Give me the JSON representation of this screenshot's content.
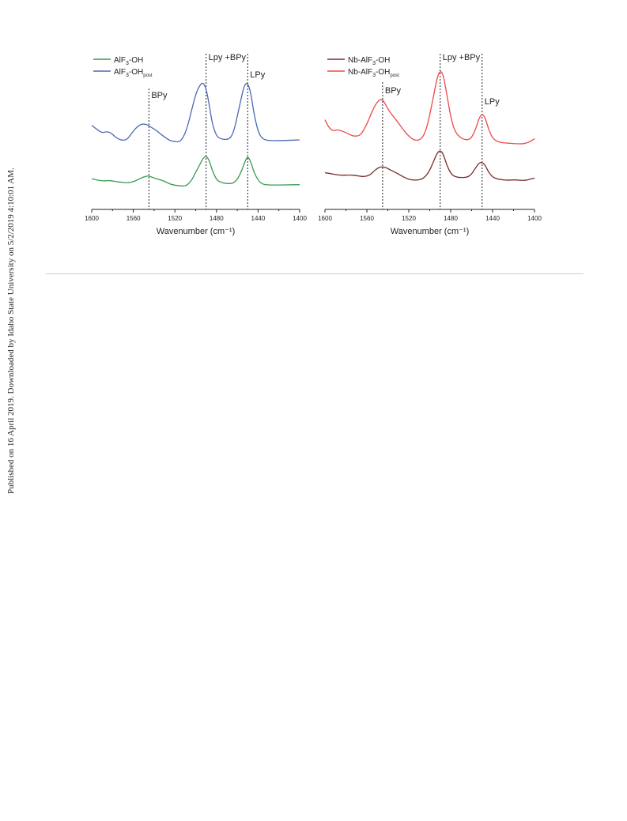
{
  "side_note": "Published on 16 April 2019. Downloaded by Idaho State University on 5/2/2019 4:10:01 AM.",
  "colors": {
    "AlF3-OH": "#3a9a4f",
    "AlF3-OHpost": "#4d68b5",
    "Nb-AlF3-OH": "#7a2a2a",
    "Nb-AlF3-OHpost": "#f0474a"
  },
  "chart_data": [
    {
      "type": "line",
      "xlabel": "Wavenumber (cm⁻¹)",
      "xlim": [
        1600,
        1400
      ],
      "xticks": [
        1600,
        1560,
        1520,
        1480,
        1440,
        1400
      ],
      "y_ticks_shown": false,
      "legend": {
        "position": "top-left",
        "entries": [
          "AlF3-OH",
          "AlF3-OHpost"
        ]
      },
      "annotations": [
        {
          "text": "BPy",
          "x": 1545
        },
        {
          "text": "Lpy +BPy",
          "x": 1490
        },
        {
          "text": "LPy",
          "x": 1450
        }
      ],
      "series": [
        {
          "name": "AlF3-OH",
          "x": [
            1600,
            1594,
            1588,
            1584,
            1580,
            1576,
            1572,
            1566,
            1560,
            1556,
            1552,
            1548,
            1545,
            1542,
            1538,
            1532,
            1528,
            1524,
            1520,
            1516,
            1512,
            1508,
            1504,
            1500,
            1496,
            1493,
            1490,
            1487,
            1484,
            1480,
            1476,
            1472,
            1468,
            1464,
            1460,
            1456,
            1453,
            1450,
            1447,
            1444,
            1440,
            1436,
            1430,
            1420,
            1410,
            1400
          ],
          "y": [
            0.52,
            0.42,
            0.36,
            0.4,
            0.37,
            0.31,
            0.29,
            0.24,
            0.31,
            0.44,
            0.58,
            0.68,
            0.7,
            0.62,
            0.52,
            0.4,
            0.28,
            0.14,
            0.09,
            0.05,
            0.02,
            0.1,
            0.4,
            0.95,
            1.45,
            1.88,
            2.05,
            1.75,
            1.05,
            0.45,
            0.28,
            0.22,
            0.18,
            0.22,
            0.45,
            1.0,
            1.6,
            2.05,
            1.65,
            0.95,
            0.42,
            0.15,
            0.1,
            0.1,
            0.11,
            0.12
          ]
        },
        {
          "name": "AlF3-OHpost",
          "x": [
            1600,
            1594,
            1590,
            1586,
            1582,
            1579,
            1575,
            1570,
            1566,
            1562,
            1558,
            1554,
            1550,
            1546,
            1542,
            1538,
            1534,
            1528,
            1524,
            1520,
            1516,
            1512,
            1508,
            1504,
            1500,
            1496,
            1493,
            1490,
            1487,
            1484,
            1480,
            1476,
            1472,
            1468,
            1464,
            1460,
            1456,
            1453,
            1450,
            1447,
            1444,
            1440,
            1436,
            1430,
            1420,
            1410,
            1400
          ],
          "y": [
            3.02,
            2.7,
            2.52,
            2.6,
            2.55,
            2.35,
            2.12,
            2.02,
            2.08,
            2.45,
            2.8,
            3.05,
            3.12,
            3.04,
            2.85,
            2.7,
            2.45,
            2.15,
            1.98,
            1.95,
            1.9,
            2.2,
            2.9,
            4.0,
            5.1,
            5.7,
            5.88,
            5.5,
            4.4,
            3.1,
            2.3,
            2.12,
            2.08,
            2.1,
            2.45,
            3.6,
            4.9,
            5.75,
            5.85,
            5.2,
            3.8,
            2.6,
            2.12,
            2.0,
            2.0,
            2.02,
            2.05
          ]
        }
      ]
    },
    {
      "type": "line",
      "xlabel": "Wavenumber (cm⁻¹)",
      "xlim": [
        1600,
        1400
      ],
      "xticks": [
        1600,
        1560,
        1520,
        1480,
        1440,
        1400
      ],
      "y_ticks_shown": false,
      "legend": {
        "position": "top-left",
        "entries": [
          "Nb-AlF3-OH",
          "Nb-AlF3-OHpost"
        ]
      },
      "annotations": [
        {
          "text": "BPy",
          "x": 1545
        },
        {
          "text": "Lpy +BPy",
          "x": 1490
        },
        {
          "text": "LPy",
          "x": 1450
        }
      ],
      "series": [
        {
          "name": "Nb-AlF3-OH",
          "x": [
            1600,
            1594,
            1588,
            1582,
            1576,
            1570,
            1564,
            1558,
            1554,
            1550,
            1546,
            1542,
            1538,
            1532,
            1526,
            1520,
            1514,
            1508,
            1504,
            1500,
            1496,
            1493,
            1490,
            1487,
            1484,
            1480,
            1476,
            1470,
            1464,
            1460,
            1456,
            1453,
            1450,
            1447,
            1444,
            1440,
            1434,
            1426,
            1418,
            1410,
            1404,
            1400
          ],
          "y": [
            0.55,
            0.48,
            0.4,
            0.38,
            0.4,
            0.36,
            0.28,
            0.35,
            0.6,
            0.85,
            0.95,
            0.9,
            0.75,
            0.55,
            0.3,
            0.1,
            0.05,
            0.1,
            0.3,
            0.7,
            1.35,
            1.85,
            2.05,
            1.8,
            1.1,
            0.5,
            0.28,
            0.22,
            0.25,
            0.45,
            0.9,
            1.2,
            1.25,
            1.05,
            0.6,
            0.25,
            0.1,
            0.05,
            0.08,
            0.02,
            0.12,
            0.2
          ]
        },
        {
          "name": "Nb-AlF3-OHpost",
          "x": [
            1600,
            1596,
            1592,
            1588,
            1584,
            1580,
            1576,
            1572,
            1566,
            1560,
            1556,
            1552,
            1548,
            1545,
            1542,
            1538,
            1532,
            1526,
            1520,
            1514,
            1508,
            1504,
            1500,
            1496,
            1493,
            1490,
            1487,
            1484,
            1480,
            1476,
            1470,
            1464,
            1460,
            1456,
            1453,
            1450,
            1447,
            1444,
            1440,
            1434,
            1426,
            1418,
            1410,
            1404,
            1400
          ],
          "y": [
            3.6,
            3.05,
            2.85,
            2.95,
            2.85,
            2.75,
            2.6,
            2.5,
            2.55,
            3.3,
            4.0,
            4.6,
            4.95,
            4.95,
            4.6,
            4.1,
            3.6,
            3.0,
            2.5,
            2.2,
            2.3,
            2.8,
            3.9,
            5.3,
            6.4,
            6.9,
            6.6,
            5.4,
            3.8,
            2.8,
            2.35,
            2.25,
            2.4,
            3.0,
            3.7,
            4.0,
            3.75,
            3.0,
            2.35,
            2.1,
            2.05,
            2.0,
            2.0,
            2.15,
            2.35
          ]
        }
      ]
    }
  ]
}
